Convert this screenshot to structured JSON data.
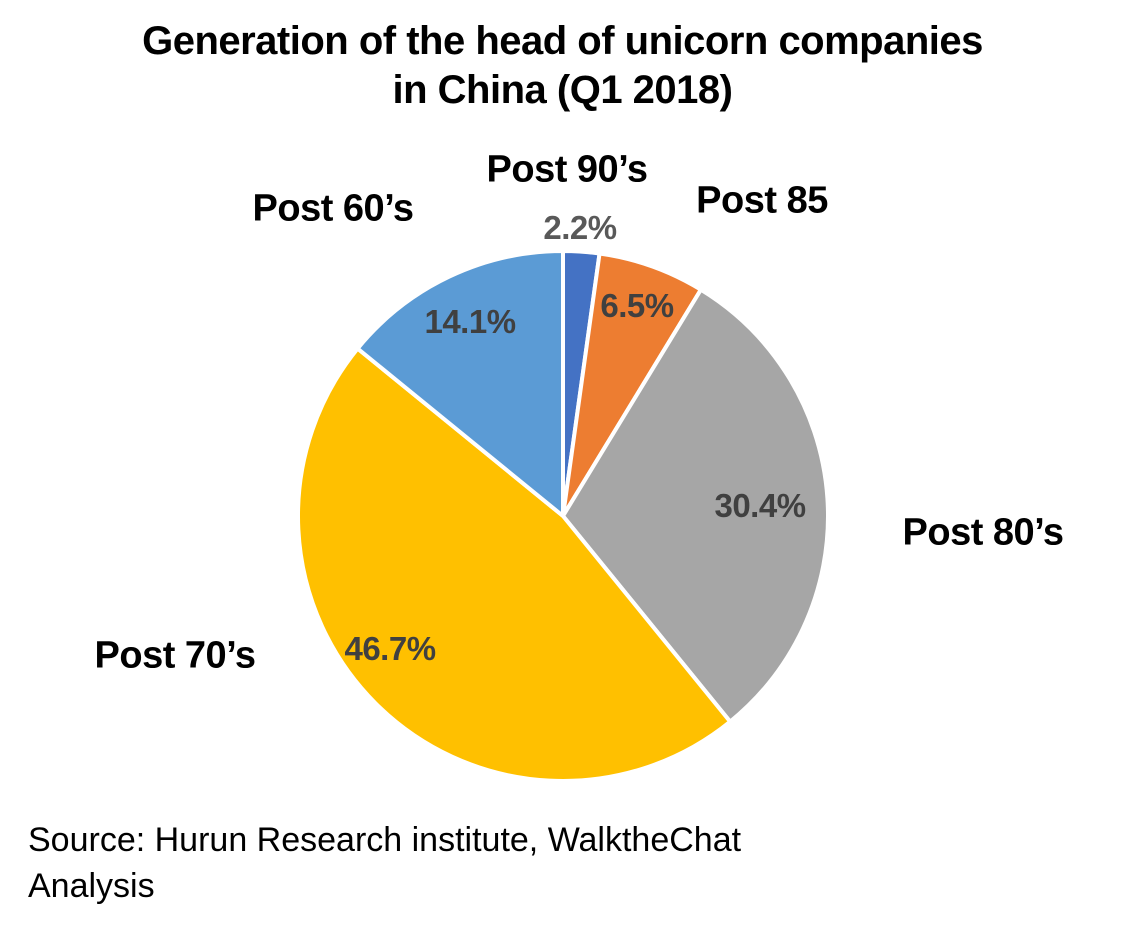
{
  "page": {
    "background": "#ffffff"
  },
  "title": {
    "line1": "Generation of the head of unicorn companies",
    "line2": "in China (Q1 2018)"
  },
  "source": {
    "line1": "Source: Hurun Research institute, WalktheChat",
    "line2": "Analysis"
  },
  "chart_data": {
    "type": "pie",
    "title": "Generation of the head of unicorn companies in China (Q1 2018)",
    "value_unit": "percent",
    "direction": "clockwise",
    "start_angle_deg": 0,
    "legend": "none",
    "categories": [
      "Post 90’s",
      "Post 85",
      "Post 80’s",
      "Post 70’s",
      "Post 60’s"
    ],
    "values": [
      2.2,
      6.5,
      30.4,
      46.7,
      14.1
    ],
    "slices": [
      {
        "name": "Post 90’s",
        "value": 2.2,
        "label": "2.2%",
        "color": "#4472C4",
        "label_color": "#595959",
        "label_pos": [
          580,
          228
        ],
        "label_placement": "outside",
        "name_pos": [
          567,
          170
        ]
      },
      {
        "name": "Post 85",
        "value": 6.5,
        "label": "6.5%",
        "color": "#ED7D31",
        "label_color": "#404040",
        "label_pos": [
          637,
          306
        ],
        "label_placement": "inside",
        "name_pos": [
          762,
          201
        ]
      },
      {
        "name": "Post 80’s",
        "value": 30.4,
        "label": "30.4%",
        "color": "#A6A6A6",
        "label_color": "#404040",
        "label_pos": [
          760,
          506
        ],
        "label_placement": "inside",
        "name_pos": [
          983,
          533
        ]
      },
      {
        "name": "Post 70’s",
        "value": 46.7,
        "label": "46.7%",
        "color": "#FFC000",
        "label_color": "#404040",
        "label_pos": [
          390,
          649
        ],
        "label_placement": "inside",
        "name_pos": [
          175,
          656
        ]
      },
      {
        "name": "Post 60’s",
        "value": 14.1,
        "label": "14.1%",
        "color": "#5B9BD5",
        "label_color": "#404040",
        "label_pos": [
          470,
          322
        ],
        "label_placement": "inside",
        "name_pos": [
          333,
          209
        ]
      }
    ],
    "layout": {
      "center": [
        563,
        516
      ],
      "radius": 265,
      "slice_gap_color": "#FFFFFF",
      "slice_gap_width": 4
    }
  }
}
